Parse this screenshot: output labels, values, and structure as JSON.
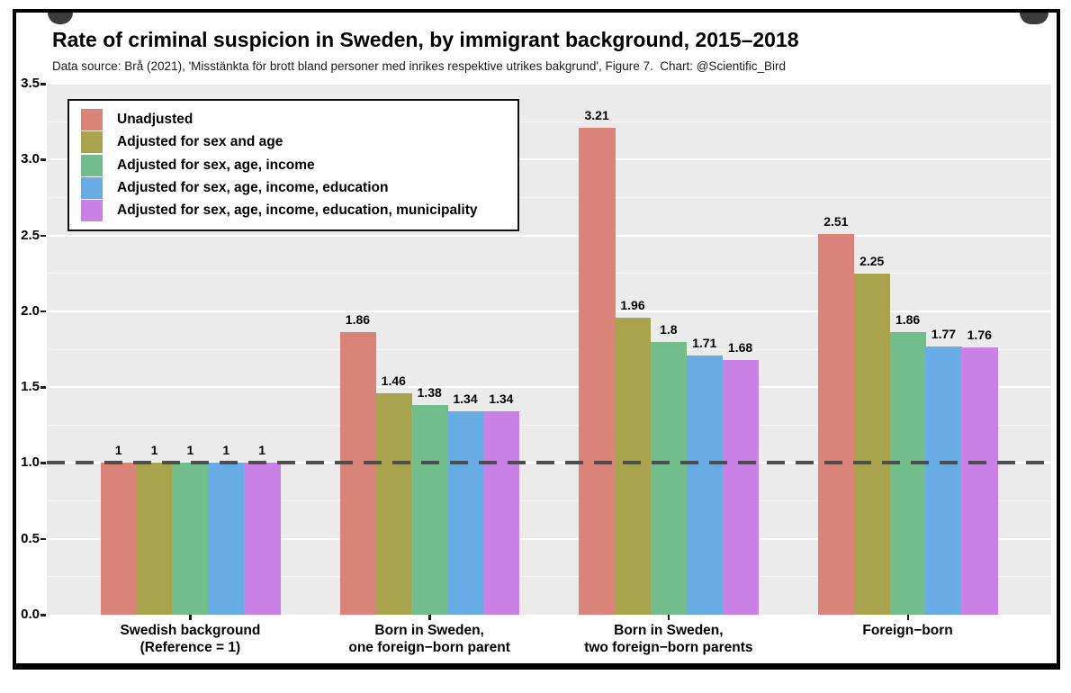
{
  "chart_data": {
    "type": "bar",
    "title": "Rate of criminal suspicion in Sweden, by immigrant background, 2015–2018",
    "subtitle": "Data source: Brå (2021), 'Misstänkta för brott bland personer med inrikes respektive utrikes bakgrund', Figure 7.  Chart: @Scientific_Bird",
    "categories": [
      [
        "Swedish background",
        "(Reference = 1)"
      ],
      [
        "Born in Sweden,",
        "one foreign−born parent"
      ],
      [
        "Born in Sweden,",
        "two foreign−born parents"
      ],
      [
        "Foreign−born"
      ]
    ],
    "series": [
      {
        "name": "Unadjusted",
        "color": "#D98379",
        "values": [
          1,
          1.86,
          3.21,
          2.51
        ],
        "labels": [
          "1",
          "1.86",
          "3.21",
          "2.51"
        ]
      },
      {
        "name": "Adjusted for sex and age",
        "color": "#A8A44D",
        "values": [
          1,
          1.46,
          1.96,
          2.25
        ],
        "labels": [
          "1",
          "1.46",
          "1.96",
          "2.25"
        ]
      },
      {
        "name": "Adjusted for sex, age, income",
        "color": "#73BD8C",
        "values": [
          1,
          1.38,
          1.8,
          1.86
        ],
        "labels": [
          "1",
          "1.38",
          "1.8",
          "1.86"
        ]
      },
      {
        "name": "Adjusted for sex, age, income, education",
        "color": "#67ACE5",
        "values": [
          1,
          1.34,
          1.71,
          1.77
        ],
        "labels": [
          "1",
          "1.34",
          "1.71",
          "1.77"
        ]
      },
      {
        "name": "Adjusted for sex, age, income, education, municipality",
        "color": "#C981E5",
        "values": [
          1,
          1.34,
          1.68,
          1.76
        ],
        "labels": [
          "1",
          "1.34",
          "1.68",
          "1.76"
        ]
      }
    ],
    "ylim": [
      0,
      3.5
    ],
    "yticks": [
      "0.0",
      "0.5",
      "1.0",
      "1.5",
      "2.0",
      "2.5",
      "3.0",
      "3.5"
    ],
    "minor_tick_step": 0.25,
    "reference_line": 1,
    "grid": "on",
    "legend_position": "inside-top-left",
    "xlabel": "",
    "ylabel": ""
  },
  "colors": {
    "plot_background": "#EBEBEB",
    "grid_major": "#FFFFFF",
    "reference_line": "#4D4D4D",
    "frame_border": "#000000"
  }
}
